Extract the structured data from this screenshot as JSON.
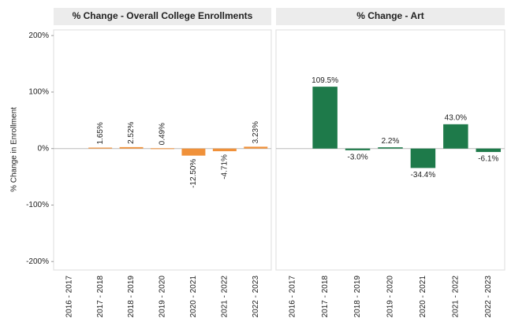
{
  "chart_data": [
    {
      "type": "bar",
      "title": "% Change - Overall College Enrollments",
      "y_label": "% Change in Enrollment",
      "categories": [
        "2016 - 2017",
        "2017 - 2018",
        "2018 - 2019",
        "2019 - 2020",
        "2020 - 2021",
        "2021 - 2022",
        "2022 - 2023"
      ],
      "values": [
        null,
        1.65,
        2.52,
        0.49,
        -12.5,
        -4.71,
        3.23
      ],
      "value_labels": [
        null,
        "1.65%",
        "2.52%",
        "0.49%",
        "-12.50%",
        "-4.71%",
        "3.23%"
      ],
      "color": "#f0913a",
      "ylim": [
        -215,
        210
      ],
      "yticks": [
        {
          "value": 200,
          "label": "200%"
        },
        {
          "value": 100,
          "label": "100%"
        },
        {
          "value": 0,
          "label": "0%"
        },
        {
          "value": -100,
          "label": "-100%"
        },
        {
          "value": -200,
          "label": "-200%"
        }
      ]
    },
    {
      "type": "bar",
      "title": "% Change - Art",
      "categories": [
        "2016 - 2017",
        "2017 - 2018",
        "2018 - 2019",
        "2019 - 2020",
        "2020 - 2021",
        "2021 - 2022",
        "2022 - 2023"
      ],
      "values": [
        null,
        109.5,
        -3.0,
        2.2,
        -34.4,
        43.0,
        -6.1
      ],
      "value_labels": [
        null,
        "109.5%",
        "-3.0%",
        "2.2%",
        "-34.4%",
        "43.0%",
        "-6.1%"
      ],
      "color": "#1e7a4a",
      "ylim": [
        -215,
        210
      ]
    }
  ]
}
